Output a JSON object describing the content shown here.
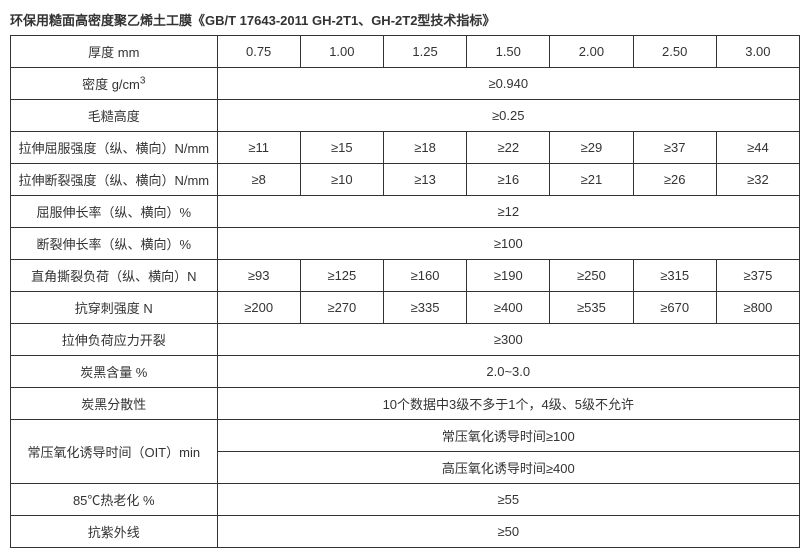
{
  "title": "环保用糙面高密度聚乙烯土工膜《GB/T 17643-2011 GH-2T1、GH-2T2型技术指标》",
  "rows": {
    "thickness": {
      "label": "厚度 mm",
      "vals": [
        "0.75",
        "1.00",
        "1.25",
        "1.50",
        "2.00",
        "2.50",
        "3.00"
      ]
    },
    "density": {
      "label": "密度 g/cm",
      "sup": "3",
      "span": "≥0.940"
    },
    "roughHeight": {
      "label": "毛糙高度",
      "span": "≥0.25"
    },
    "yieldStrength": {
      "label": "拉伸屈服强度（纵、横向）N/mm",
      "vals": [
        "≥11",
        "≥15",
        "≥18",
        "≥22",
        "≥29",
        "≥37",
        "≥44"
      ]
    },
    "breakStrength": {
      "label": "拉伸断裂强度（纵、横向）N/mm",
      "vals": [
        "≥8",
        "≥10",
        "≥13",
        "≥16",
        "≥21",
        "≥26",
        "≥32"
      ]
    },
    "yieldElong": {
      "label": "屈服伸长率（纵、横向）%",
      "span": "≥12"
    },
    "breakElong": {
      "label": "断裂伸长率（纵、横向）%",
      "span": "≥100"
    },
    "tearLoad": {
      "label": "直角撕裂负荷（纵、横向）N",
      "vals": [
        "≥93",
        "≥125",
        "≥160",
        "≥190",
        "≥250",
        "≥315",
        "≥375"
      ]
    },
    "puncture": {
      "label": "抗穿刺强度 N",
      "vals": [
        "≥200",
        "≥270",
        "≥335",
        "≥400",
        "≥535",
        "≥670",
        "≥800"
      ]
    },
    "stressCrack": {
      "label": "拉伸负荷应力开裂",
      "span": "≥300"
    },
    "carbonContent": {
      "label": "炭黑含量 %",
      "span": "2.0~3.0"
    },
    "carbonDisp": {
      "label": "炭黑分散性",
      "span": "10个数据中3级不多于1个，4级、5级不允许"
    },
    "oit": {
      "label": "常压氧化诱导时间（OIT）min",
      "span1": "常压氧化诱导时间≥100",
      "span2": "高压氧化诱导时间≥400"
    },
    "heatAging": {
      "label": "85℃热老化 %",
      "span": "≥55"
    },
    "uv": {
      "label": "抗紫外线",
      "span": "≥50"
    }
  }
}
